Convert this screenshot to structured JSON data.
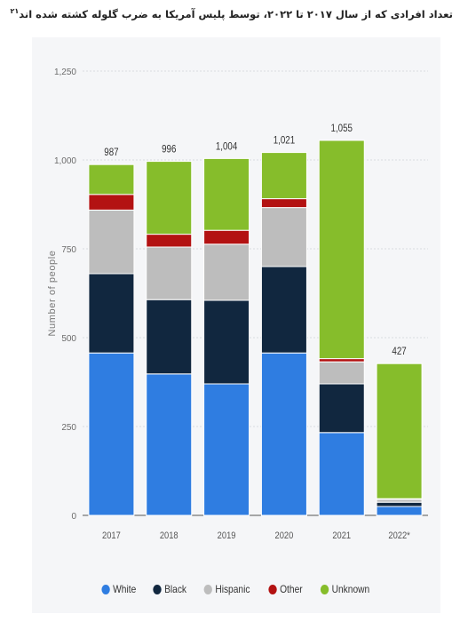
{
  "title": "تعداد افرادی که از سال ۲۰۱۷ تا ۲۰۲۲، توسط پلیس آمریکا به ضرب گلوله کشته شده اند",
  "title_footnote": "۲۱",
  "chart_data": {
    "type": "bar",
    "stacked": true,
    "categories": [
      "2017",
      "2018",
      "2019",
      "2020",
      "2021",
      "2022*"
    ],
    "series": [
      {
        "name": "White",
        "color": "#2f7de1",
        "values": [
          457,
          398,
          370,
          457,
          233,
          25
        ]
      },
      {
        "name": "Black",
        "color": "#11273f",
        "values": [
          223,
          209,
          235,
          243,
          137,
          12
        ]
      },
      {
        "name": "Hispanic",
        "color": "#bdbdbd",
        "values": [
          179,
          148,
          158,
          166,
          62,
          8
        ]
      },
      {
        "name": "Other",
        "color": "#b31212",
        "values": [
          44,
          36,
          39,
          25,
          9,
          2
        ]
      },
      {
        "name": "Unknown",
        "color": "#86bd2b",
        "values": [
          84,
          205,
          202,
          130,
          614,
          380
        ]
      }
    ],
    "totals": [
      "987",
      "996",
      "1,004",
      "1,021",
      "1,055",
      "427"
    ],
    "ylabel": "Number of people",
    "xlabel": "",
    "ylim": [
      0,
      1250
    ],
    "yticks": [
      0,
      250,
      500,
      750,
      1000,
      1250
    ],
    "ytick_labels": [
      "0",
      "250",
      "500",
      "750",
      "1,000",
      "1,250"
    ],
    "grid": true,
    "legend_position": "bottom"
  }
}
